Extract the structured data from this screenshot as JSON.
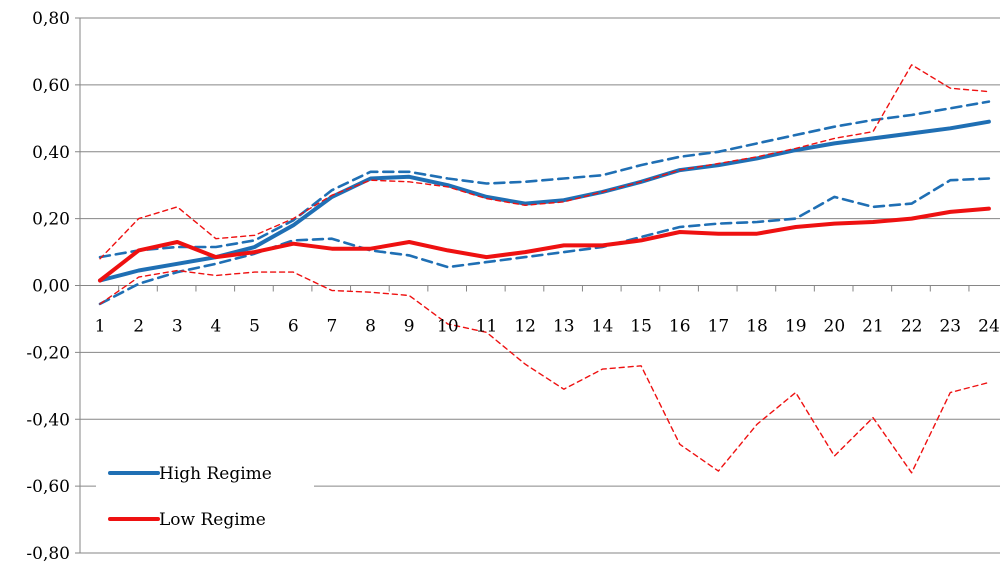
{
  "chart_data": {
    "type": "line",
    "title": "",
    "xlabel": "",
    "ylabel": "",
    "categories": [
      "1",
      "2",
      "3",
      "4",
      "5",
      "6",
      "7",
      "8",
      "9",
      "10",
      "11",
      "12",
      "13",
      "14",
      "15",
      "16",
      "17",
      "18",
      "19",
      "20",
      "21",
      "22",
      "23",
      "24"
    ],
    "y_tick_labels": [
      "0,80",
      "0,60",
      "0,40",
      "0,20",
      "0,00",
      "-0,20",
      "-0,40",
      "-0,60",
      "-0,80"
    ],
    "ylim": [
      -0.8,
      0.8
    ],
    "y_major_step": 0.2,
    "grid": "horizontal",
    "legend": {
      "position": "bottom-left",
      "entries": [
        {
          "label": "High Regime",
          "color": "#1f6fb4"
        },
        {
          "label": "Low Regime",
          "color": "#ee1111"
        }
      ]
    },
    "series": [
      {
        "name": "High Regime",
        "color": "#1f6fb4",
        "style": "solid",
        "role": "estimate",
        "values": [
          0.015,
          0.045,
          0.065,
          0.085,
          0.115,
          0.18,
          0.265,
          0.32,
          0.325,
          0.3,
          0.265,
          0.245,
          0.255,
          0.28,
          0.31,
          0.345,
          0.36,
          0.38,
          0.405,
          0.425,
          0.44,
          0.455,
          0.47,
          0.49
        ]
      },
      {
        "color": "#1f6fb4",
        "style": "dashed",
        "role": "upper-band",
        "values": [
          0.085,
          0.105,
          0.115,
          0.115,
          0.135,
          0.195,
          0.285,
          0.34,
          0.34,
          0.32,
          0.305,
          0.31,
          0.32,
          0.33,
          0.36,
          0.385,
          0.4,
          0.425,
          0.45,
          0.475,
          0.495,
          0.51,
          0.53,
          0.55
        ]
      },
      {
        "color": "#1f6fb4",
        "style": "dashed",
        "role": "lower-band",
        "values": [
          -0.055,
          0.005,
          0.04,
          0.065,
          0.095,
          0.135,
          0.14,
          0.105,
          0.09,
          0.055,
          0.07,
          0.085,
          0.1,
          0.115,
          0.145,
          0.175,
          0.185,
          0.19,
          0.2,
          0.265,
          0.235,
          0.245,
          0.315,
          0.32
        ]
      },
      {
        "name": "Low Regime",
        "color": "#ee1111",
        "style": "solid",
        "role": "estimate",
        "values": [
          0.015,
          0.105,
          0.13,
          0.085,
          0.1,
          0.125,
          0.11,
          0.11,
          0.13,
          0.105,
          0.085,
          0.1,
          0.12,
          0.12,
          0.135,
          0.16,
          0.155,
          0.155,
          0.175,
          0.185,
          0.19,
          0.2,
          0.22,
          0.23
        ]
      },
      {
        "color": "#ee1111",
        "style": "dashed-thin",
        "role": "upper-band",
        "values": [
          0.08,
          0.2,
          0.235,
          0.14,
          0.15,
          0.2,
          0.27,
          0.315,
          0.31,
          0.295,
          0.26,
          0.24,
          0.25,
          0.28,
          0.31,
          0.345,
          0.365,
          0.385,
          0.41,
          0.44,
          0.46,
          0.66,
          0.59,
          0.58
        ]
      },
      {
        "color": "#ee1111",
        "style": "dashed-thin",
        "role": "lower-band",
        "values": [
          -0.055,
          0.025,
          0.045,
          0.03,
          0.04,
          0.04,
          -0.015,
          -0.02,
          -0.03,
          -0.115,
          -0.14,
          -0.235,
          -0.31,
          -0.25,
          -0.24,
          -0.475,
          -0.555,
          -0.415,
          -0.32,
          -0.51,
          -0.395,
          -0.56,
          -0.32,
          -0.29
        ]
      }
    ]
  }
}
